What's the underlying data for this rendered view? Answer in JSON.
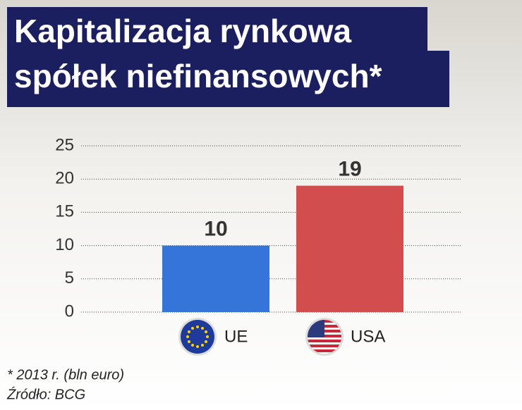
{
  "chart_data": {
    "type": "bar",
    "title": [
      "Kapitalizacja rynkowa",
      "spółek niefinansowych*"
    ],
    "categories": [
      "UE",
      "USA"
    ],
    "values": [
      10,
      19
    ],
    "colors": [
      "#3574d9",
      "#d24d4d"
    ],
    "ylim": [
      0,
      25
    ],
    "yticks": [
      0,
      5,
      10,
      15,
      20,
      25
    ],
    "grid": true,
    "note": "* 2013 r. (bln euro)",
    "source": "Źródło: BCG"
  }
}
